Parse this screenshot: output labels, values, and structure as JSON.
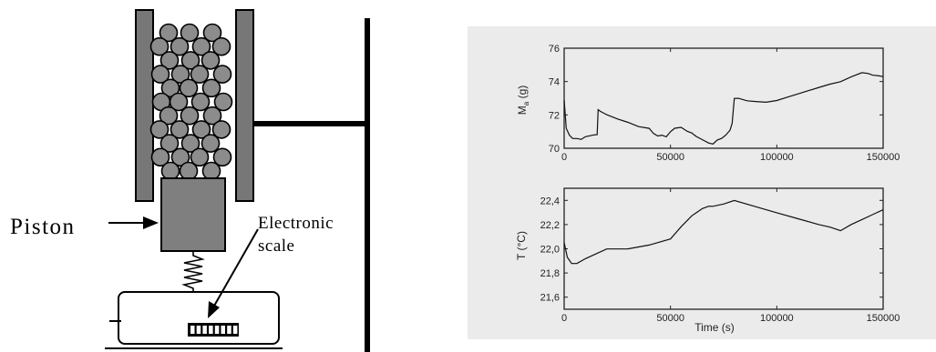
{
  "diagram": {
    "piston_label": "Piston",
    "scale_label_line1": "Electronic",
    "scale_label_line2": "scale",
    "colors": {
      "grain": "#8c8c8c",
      "piston": "#7f7f7f",
      "wall": "#777777",
      "ink": "#000000"
    }
  },
  "chart_data": [
    {
      "type": "line",
      "ylabel_main": "M",
      "ylabel_sub": "a",
      "ylabel_unit": " (g)",
      "xlim": [
        0,
        150000
      ],
      "ylim": [
        70,
        76
      ],
      "xticks": [
        "0",
        "50000",
        "100000",
        "150000"
      ],
      "yticks": [
        "70",
        "72",
        "74",
        "76"
      ],
      "series": [
        {
          "x": [
            0,
            1000,
            2500,
            4000,
            6000,
            8000,
            10000,
            12000,
            14000,
            15500,
            16000,
            17000,
            20000,
            25000,
            30000,
            35000,
            40000,
            42000,
            44000,
            46000,
            48000,
            50000,
            52000,
            55000,
            58000,
            60000,
            62000,
            65000,
            68000,
            70000,
            72000,
            74000,
            76000,
            78000,
            79000,
            80000,
            82000,
            86000,
            90000,
            95000,
            100000,
            105000,
            110000,
            115000,
            120000,
            125000,
            130000,
            135000,
            140000,
            143000,
            145000,
            148000,
            150000
          ],
          "y": [
            72.9,
            71.2,
            70.8,
            70.6,
            70.6,
            70.55,
            70.7,
            70.75,
            70.8,
            70.8,
            72.3,
            72.2,
            72.0,
            71.75,
            71.55,
            71.3,
            71.2,
            70.9,
            70.75,
            70.8,
            70.7,
            71.0,
            71.2,
            71.25,
            71.0,
            70.9,
            70.7,
            70.5,
            70.3,
            70.25,
            70.5,
            70.6,
            70.8,
            71.1,
            71.5,
            73.0,
            73.0,
            72.85,
            72.8,
            72.75,
            72.85,
            73.05,
            73.25,
            73.45,
            73.65,
            73.85,
            74.0,
            74.3,
            74.55,
            74.5,
            74.4,
            74.35,
            74.3
          ]
        }
      ]
    },
    {
      "type": "line",
      "ylabel": "T (°C)",
      "xlabel": "Time (s)",
      "xlim": [
        0,
        150000
      ],
      "ylim": [
        21.5,
        22.5
      ],
      "xticks": [
        "0",
        "50000",
        "100000",
        "150000"
      ],
      "yticks": [
        "21,6",
        "21,8",
        "22,0",
        "22,2",
        "22,4"
      ],
      "series": [
        {
          "x": [
            0,
            1500,
            3500,
            6000,
            10000,
            15000,
            20000,
            30000,
            40000,
            50000,
            55000,
            60000,
            65000,
            68000,
            70000,
            75000,
            80000,
            90000,
            100000,
            110000,
            120000,
            125000,
            130000,
            135000,
            140000,
            145000,
            150000
          ],
          "y": [
            22.05,
            21.93,
            21.88,
            21.88,
            21.92,
            21.96,
            22.0,
            22.0,
            22.03,
            22.08,
            22.18,
            22.27,
            22.33,
            22.35,
            22.35,
            22.37,
            22.4,
            22.35,
            22.3,
            22.25,
            22.2,
            22.18,
            22.15,
            22.2,
            22.24,
            22.28,
            22.32
          ]
        }
      ]
    }
  ]
}
